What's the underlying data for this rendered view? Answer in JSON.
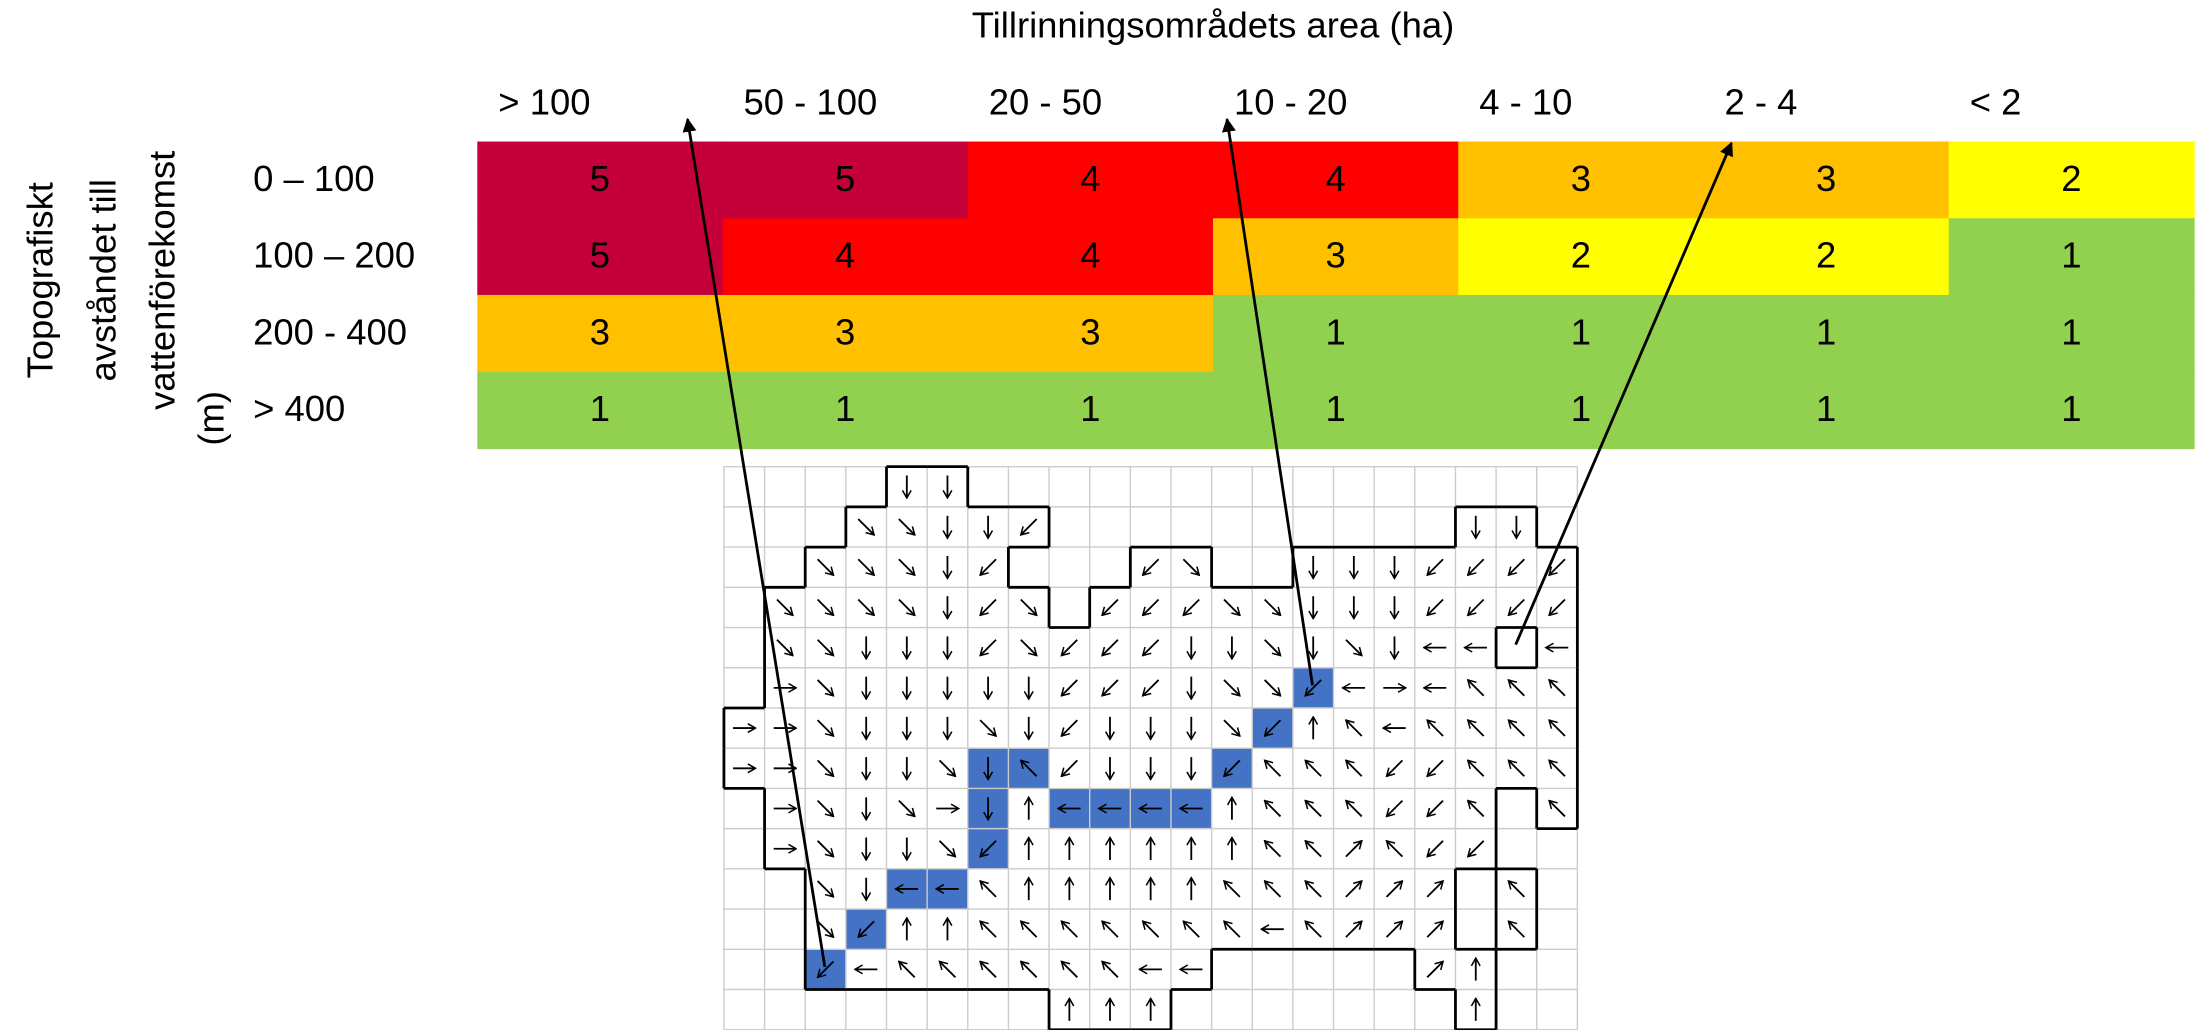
{
  "title": "Tillrinningsområdets area (ha)",
  "row_axis_label": [
    "Topografiskt",
    "avståndet till",
    "vattenförekomst",
    "(m)"
  ],
  "table": {
    "columns": [
      "> 100",
      "50 - 100",
      "20 - 50",
      "10 - 20",
      "4 - 10",
      "2 - 4",
      "< 2"
    ],
    "rows": [
      "0 – 100",
      "100 – 200",
      "200 - 400",
      "> 400"
    ],
    "cells": [
      [
        5,
        5,
        4,
        4,
        3,
        3,
        2
      ],
      [
        5,
        4,
        4,
        3,
        2,
        2,
        1
      ],
      [
        3,
        3,
        3,
        1,
        1,
        1,
        1
      ],
      [
        1,
        1,
        1,
        1,
        1,
        1,
        1
      ]
    ],
    "colors": {
      "5": "#c4003a",
      "4": "#ff0000",
      "3": "#ffc000",
      "2": "#ffff00",
      "1": "#92d050"
    }
  }
}
